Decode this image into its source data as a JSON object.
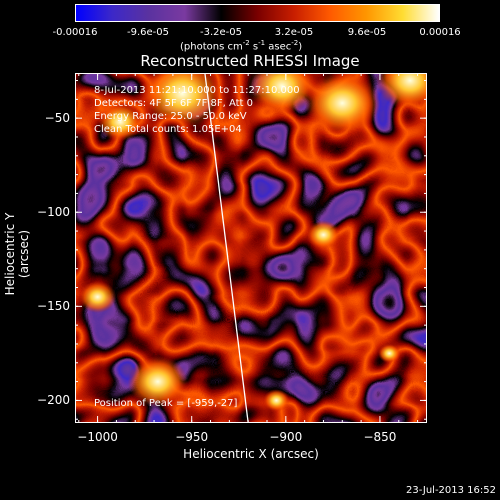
{
  "colorbar": {
    "ticks": [
      "-0.00016",
      "-9.6e-05",
      "-3.2e-05",
      "3.2e-05",
      "9.6e-05",
      "0.00016"
    ],
    "unit_main": "(photons cm",
    "unit_sup1": "-2",
    "unit_mid1": " s",
    "unit_sup2": "-1",
    "unit_mid2": " asec",
    "unit_sup3": "-2",
    "unit_end": ")"
  },
  "colors": {
    "background": "#000000",
    "cmap": [
      "#0000ff",
      "#3c28c8",
      "#5a32a0",
      "#7a3aa0",
      "#000000",
      "#7a0000",
      "#c81e00",
      "#ff5a00",
      "#ff9600",
      "#ffdc32",
      "#ffffff"
    ],
    "limb_line": "#ffffff"
  },
  "chart_data": {
    "type": "heatmap",
    "title": "Reconstructed RHESSI Image",
    "xlabel": "Heliocentric X (arcsec)",
    "ylabel": "Heliocentric Y (arcsec)",
    "xlim": [
      -1012,
      -825
    ],
    "ylim": [
      -212,
      -26
    ],
    "zlim": [
      -0.00016,
      0.00016
    ],
    "x_ticks": [
      -1000,
      -950,
      -900,
      -850
    ],
    "y_ticks": [
      -50,
      -100,
      -150,
      -200
    ],
    "x_tick_labels": [
      "−1000",
      "−950",
      "−900",
      "−850"
    ],
    "y_tick_labels": [
      "−50",
      "−100",
      "−150",
      "−200"
    ],
    "peak_position": [
      -959,
      -27
    ],
    "limb_line": [
      [
        -943,
        -26
      ],
      [
        -920,
        -212
      ]
    ],
    "grid": false,
    "info_lines": [
      "8-Jul-2013 11:21:10.000 to 11:27:10.000",
      "Detectors: 4F 5F 6F 7F 8F, Att 0",
      "Energy Range: 25.0 - 50.0 keV",
      "Clean    Total counts: 1.05E+04"
    ],
    "peak_label": "Position of Peak = [-959,-27]"
  },
  "footer": {
    "timestamp": "23-Jul-2013 16:52"
  }
}
